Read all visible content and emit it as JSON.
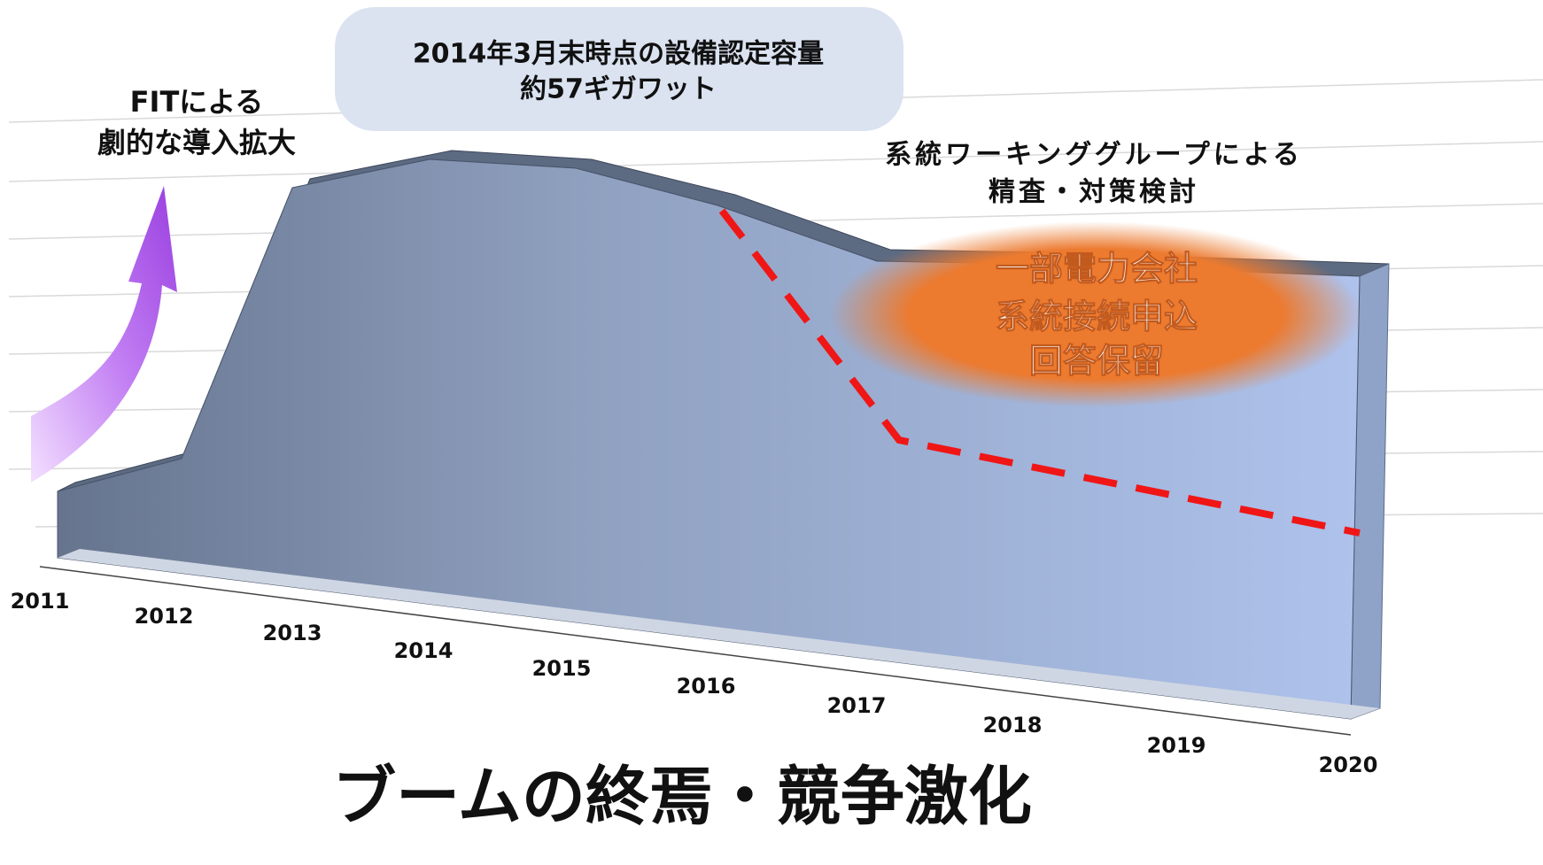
{
  "callout": {
    "lines": [
      "2014年3月末時点の設備認定容量",
      "約57ギガワット"
    ]
  },
  "left_note": {
    "lines": [
      "FITによる",
      "劇的な導入拡大"
    ]
  },
  "right_note": {
    "lines": [
      "系統ワーキンググループによる",
      "精査・対策検討"
    ]
  },
  "highlight": {
    "lines": [
      "一部電力会社",
      "系統接続申込",
      "回答保留"
    ]
  },
  "x_axis": {
    "years": [
      "2011",
      "2012",
      "2013",
      "2014",
      "2015",
      "2016",
      "2017",
      "2018",
      "2019",
      "2020"
    ]
  },
  "footer": {
    "title": "ブームの終焉・競争激化"
  }
}
